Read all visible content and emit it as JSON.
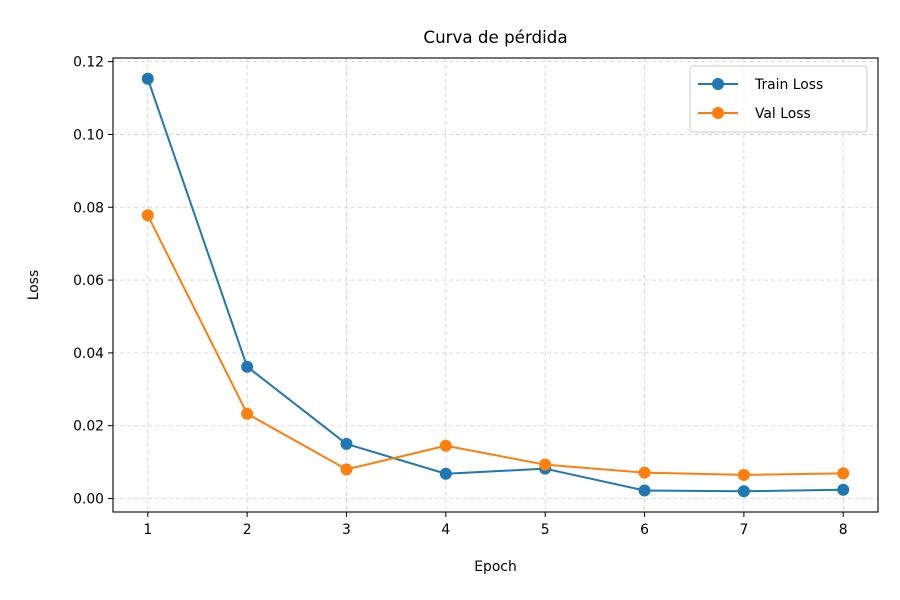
{
  "chart_data": {
    "type": "line",
    "title": "Curva de pérdida",
    "xlabel": "Epoch",
    "ylabel": "Loss",
    "x": [
      1,
      2,
      3,
      4,
      5,
      6,
      7,
      8
    ],
    "xlim": [
      0.65,
      8.35
    ],
    "ylim": [
      -0.0037,
      0.121
    ],
    "xticks": [
      1,
      2,
      3,
      4,
      5,
      6,
      7,
      8
    ],
    "xtick_labels": [
      "1",
      "2",
      "3",
      "4",
      "5",
      "6",
      "7",
      "8"
    ],
    "yticks": [
      0,
      0.02,
      0.04,
      0.06,
      0.08,
      0.1,
      0.12
    ],
    "ytick_labels": [
      "0.00",
      "0.02",
      "0.04",
      "0.06",
      "0.08",
      "0.10",
      "0.12"
    ],
    "grid": true,
    "legend_position": "top-right",
    "series": [
      {
        "name": "Train Loss",
        "color": "#1f77b4",
        "marker": "circle",
        "values": [
          0.1153,
          0.0362,
          0.015,
          0.0068,
          0.0082,
          0.0022,
          0.002,
          0.0024
        ]
      },
      {
        "name": "Val Loss",
        "color": "#ff7f0e",
        "marker": "circle",
        "values": [
          0.0778,
          0.0233,
          0.008,
          0.0145,
          0.0093,
          0.0071,
          0.0065,
          0.0069
        ]
      }
    ]
  }
}
